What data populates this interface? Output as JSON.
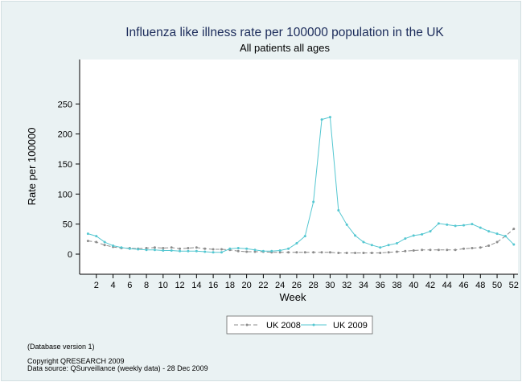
{
  "chart_data": {
    "type": "line",
    "title": "Influenza like illness rate per 100000 population in the UK",
    "subtitle": "All patients all ages",
    "xlabel": "Week",
    "ylabel": "Rate per 100000",
    "x_ticks": [
      2,
      4,
      6,
      8,
      10,
      12,
      14,
      16,
      18,
      20,
      22,
      24,
      26,
      28,
      30,
      32,
      34,
      36,
      38,
      40,
      42,
      44,
      46,
      48,
      50,
      52
    ],
    "y_ticks": [
      0,
      50,
      100,
      150,
      200,
      250
    ],
    "xlim": [
      0,
      52.5
    ],
    "ylim": [
      0,
      260
    ],
    "x": [
      1,
      2,
      3,
      4,
      5,
      6,
      7,
      8,
      9,
      10,
      11,
      12,
      13,
      14,
      15,
      16,
      17,
      18,
      19,
      20,
      21,
      22,
      23,
      24,
      25,
      26,
      27,
      28,
      29,
      30,
      31,
      32,
      33,
      34,
      35,
      36,
      37,
      38,
      39,
      40,
      41,
      42,
      43,
      44,
      45,
      46,
      47,
      48,
      49,
      50,
      51,
      52
    ],
    "series": [
      {
        "name": "UK 2008",
        "color": "#8c8c8c",
        "dash": "dashed",
        "values": [
          22,
          20,
          15,
          12,
          10,
          10,
          9,
          10,
          11,
          10,
          11,
          9,
          10,
          11,
          9,
          8,
          8,
          7,
          5,
          4,
          4,
          4,
          3,
          3,
          3,
          3,
          3,
          3,
          3,
          3,
          2,
          2,
          2,
          2,
          2,
          2,
          3,
          4,
          5,
          6,
          7,
          7,
          7,
          7,
          7,
          9,
          10,
          11,
          14,
          20,
          30,
          42
        ]
      },
      {
        "name": "UK 2009",
        "color": "#55c7d1",
        "dash": "solid",
        "values": [
          34,
          30,
          20,
          14,
          11,
          9,
          8,
          7,
          7,
          6,
          6,
          5,
          5,
          5,
          4,
          3,
          3,
          9,
          10,
          9,
          7,
          5,
          5,
          6,
          9,
          18,
          30,
          87,
          224,
          228,
          73,
          49,
          31,
          20,
          15,
          11,
          15,
          18,
          26,
          31,
          33,
          38,
          51,
          49,
          47,
          48,
          50,
          44,
          38,
          34,
          30,
          16
        ]
      }
    ],
    "legend_position": "bottom-center",
    "grid": false
  },
  "notes": {
    "db_version": "(Database version 1)",
    "copyright": "Copyright QRESEARCH 2009",
    "source": "Data source: QSurveillance (weekly data) - 28 Dec 2009"
  }
}
